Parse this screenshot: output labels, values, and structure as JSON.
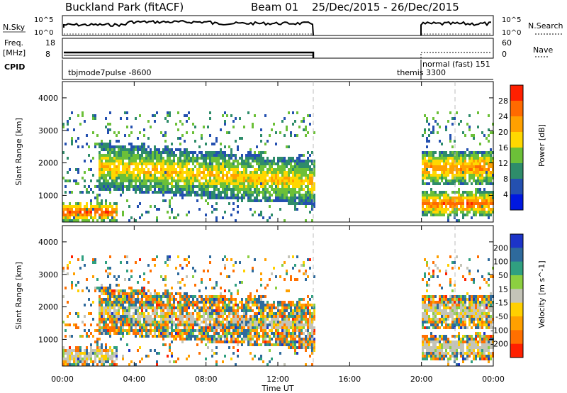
{
  "header": {
    "title": "Buckland Park (fitACF)",
    "beam": "Beam 01",
    "date_range": "25/Dec/2015 - 26/Dec/2015"
  },
  "strips": {
    "nsky_label": "N.Sky",
    "nsky_ticks": [
      "10^5",
      "10^0"
    ],
    "nsearch_label": "N.Search",
    "freq_label": "Freq.",
    "freq_unit": "[MHz]",
    "freq_ticks": [
      "18",
      "8"
    ],
    "nave_label": "Nave",
    "nave_ticks": [
      "60",
      "0"
    ],
    "cpid_label": "CPID",
    "cpid_entries": [
      "tbjmode7pulse -8600",
      "themis 3300",
      "normal (fast) 151"
    ]
  },
  "axes": {
    "x_label": "Time UT",
    "x_ticks": [
      "00:00",
      "04:00",
      "08:00",
      "12:00",
      "16:00",
      "20:00",
      "00:00"
    ],
    "y_label": "Slant Range [km]",
    "y_ticks": [
      "1000",
      "2000",
      "3000",
      "4000"
    ]
  },
  "colorbars": {
    "power": {
      "label": "Power [dB]",
      "ticks": [
        "4",
        "8",
        "12",
        "16",
        "20",
        "24",
        "28"
      ],
      "colors": [
        "#0018e0",
        "#2450b0",
        "#2e8c6a",
        "#6cc038",
        "#ffd800",
        "#ffa000",
        "#ff6a00",
        "#ff2000"
      ]
    },
    "velocity": {
      "label": "Velocity [m s^-1]",
      "ticks": [
        "200",
        "100",
        "50",
        "15",
        "-15",
        "-50",
        "-100",
        "-200"
      ],
      "colors": [
        "#1c34c8",
        "#2e6a9c",
        "#30a080",
        "#8ccf40",
        "#c4c4b8",
        "#ffd000",
        "#ffa000",
        "#ff7000",
        "#ff2000"
      ]
    }
  },
  "chart_data": [
    {
      "type": "heatmap",
      "title": "Power",
      "xlabel": "Time UT",
      "ylabel": "Slant Range [km]",
      "xlim": [
        "00:00",
        "24:00"
      ],
      "ylim": [
        180,
        4500
      ],
      "colorbar": {
        "label": "Power [dB]",
        "range": [
          0,
          32
        ]
      },
      "data_gap": [
        "14:05",
        "20:00"
      ],
      "echo_bands": [
        {
          "name": "near-range strong echoes",
          "time_start": "00:00",
          "time_end": "03:00",
          "range_start": 200,
          "range_end": 700,
          "power_db": 28
        },
        {
          "name": "main band",
          "time_start": "02:00",
          "time_end": "14:00",
          "range_start": 1300,
          "range_end": 2400,
          "power_db": 20
        },
        {
          "name": "late evening band",
          "time_start": "20:00",
          "time_end": "24:00",
          "range_start": 1400,
          "range_end": 2200,
          "power_db": 24
        },
        {
          "name": "late near-range",
          "time_start": "20:00",
          "time_end": "24:00",
          "range_start": 400,
          "range_end": 1000,
          "power_db": 26
        }
      ]
    },
    {
      "type": "heatmap",
      "title": "Velocity",
      "xlabel": "Time UT",
      "ylabel": "Slant Range [km]",
      "xlim": [
        "00:00",
        "24:00"
      ],
      "ylim": [
        180,
        4500
      ],
      "colorbar": {
        "label": "Velocity [m s^-1]",
        "range": [
          -250,
          250
        ]
      },
      "data_gap": [
        "14:05",
        "20:00"
      ]
    }
  ]
}
